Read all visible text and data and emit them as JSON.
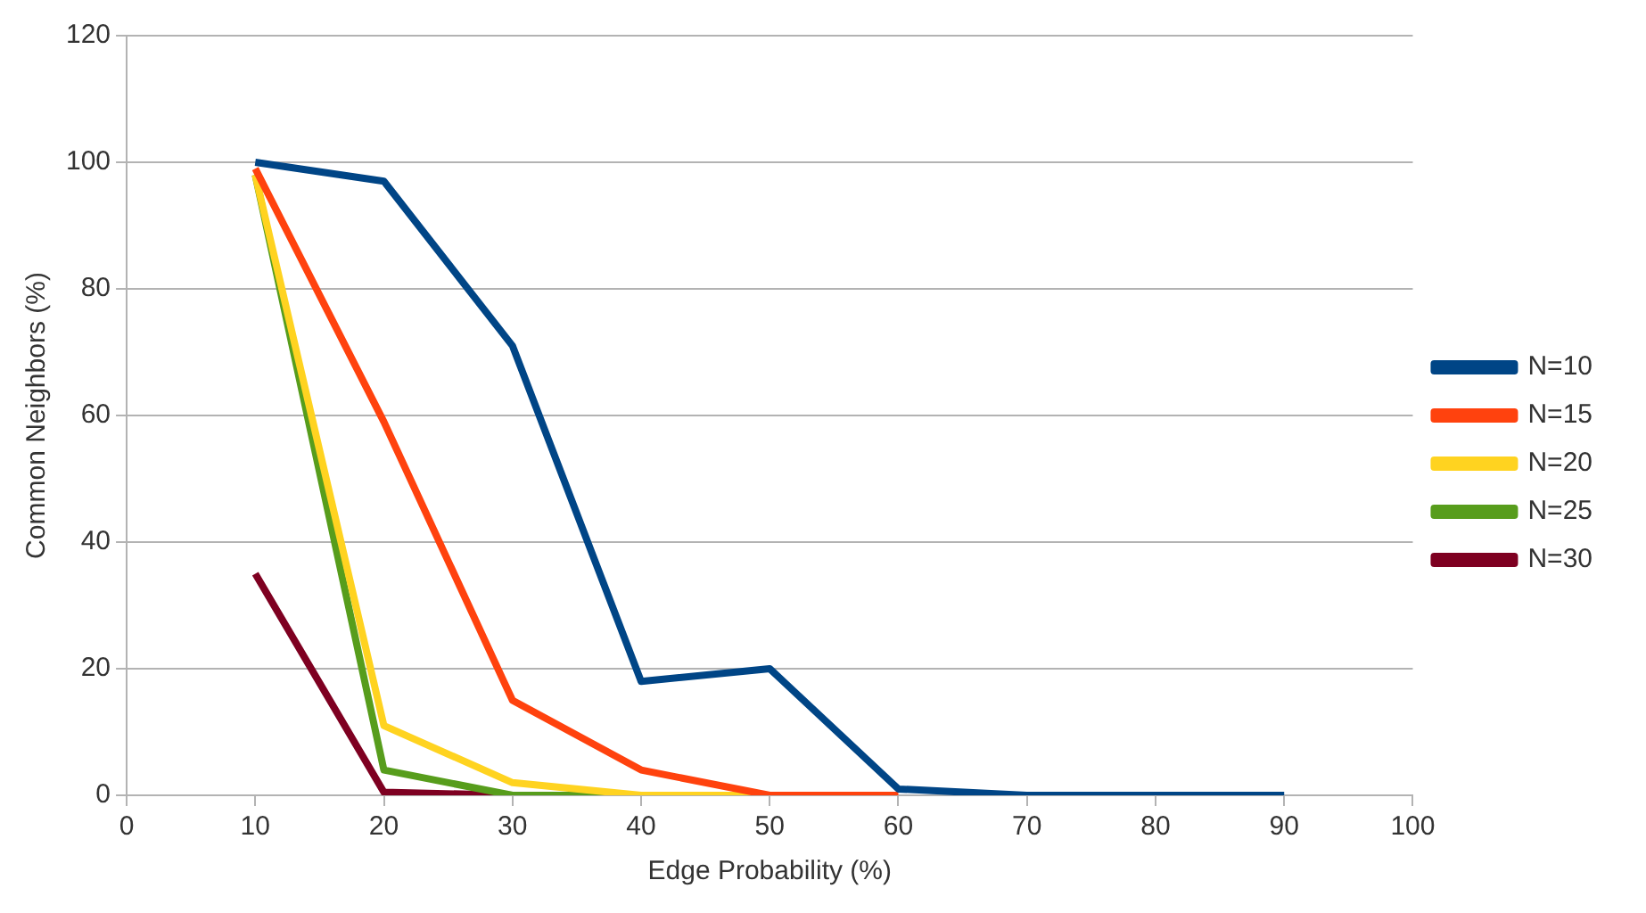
{
  "chart_data": {
    "type": "line",
    "xlabel": "Edge Probability (%)",
    "ylabel": "Common Neighbors (%)",
    "xlim": [
      0,
      100
    ],
    "xticks": [
      0,
      10,
      20,
      30,
      40,
      50,
      60,
      70,
      80,
      90,
      100
    ],
    "ylim": [
      0,
      120
    ],
    "yticks": [
      0,
      20,
      40,
      60,
      80,
      100,
      120
    ],
    "grid": "y",
    "legend": "right",
    "marker": "none",
    "line_style": "solid",
    "series": [
      {
        "name": "N=10",
        "color": "#004586",
        "x": [
          10,
          20,
          30,
          40,
          50,
          60,
          70,
          80,
          90
        ],
        "values": [
          100,
          97,
          71,
          18,
          20,
          1,
          0,
          0,
          0
        ]
      },
      {
        "name": "N=15",
        "color": "#ff420e",
        "x": [
          10,
          20,
          30,
          40,
          50,
          60
        ],
        "values": [
          99,
          59,
          15,
          4,
          0,
          0
        ]
      },
      {
        "name": "N=20",
        "color": "#ffd320",
        "x": [
          10,
          20,
          30,
          40,
          50
        ],
        "values": [
          98,
          11,
          2,
          0,
          0
        ]
      },
      {
        "name": "N=25",
        "color": "#579d1c",
        "x": [
          10,
          20,
          30,
          40
        ],
        "values": [
          98,
          4,
          0,
          0
        ]
      },
      {
        "name": "N=30",
        "color": "#7e0021",
        "x": [
          10,
          20,
          30
        ],
        "values": [
          35,
          0.5,
          0
        ]
      }
    ]
  }
}
